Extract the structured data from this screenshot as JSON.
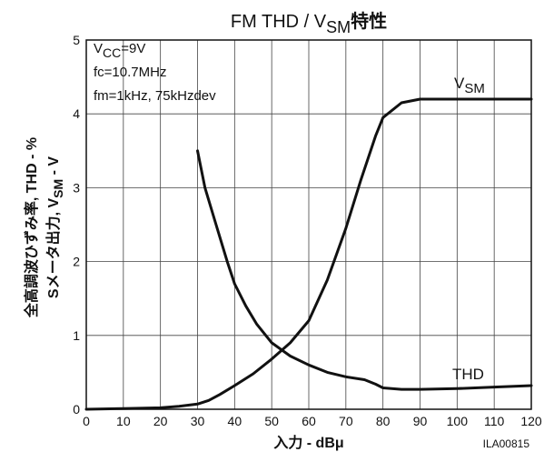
{
  "chart_data": {
    "type": "line",
    "title": "FM THD / VSM特性",
    "title_main": "FM THD / V",
    "title_sub": "SM",
    "title_suffix": "特性",
    "xlabel": "入力 - dBμ",
    "ylabel_line1": "全高調波ひずみ率, THD - %",
    "ylabel_line2_a": "Sメータ出力, V",
    "ylabel_line2_sub": "SM",
    "ylabel_line2_b": " - V",
    "xlim": [
      0,
      120
    ],
    "ylim": [
      0,
      5
    ],
    "x_ticks": [
      0,
      10,
      20,
      30,
      40,
      50,
      60,
      70,
      80,
      90,
      100,
      110,
      120
    ],
    "y_ticks": [
      0,
      1,
      2,
      3,
      4,
      5
    ],
    "grid": true,
    "conditions": {
      "vcc_a": "V",
      "vcc_sub": "CC",
      "vcc_b": "=9V",
      "fc": "fc=10.7MHz",
      "fm": "fm=1kHz, 75kHzdev"
    },
    "series": [
      {
        "name": "VSM",
        "label_main": "V",
        "label_sub": "SM",
        "x": [
          0,
          10,
          20,
          25,
          30,
          33,
          36,
          40,
          45,
          50,
          55,
          60,
          65,
          70,
          74,
          78,
          80,
          85,
          90,
          100,
          110,
          120
        ],
        "y": [
          0.0,
          0.01,
          0.02,
          0.04,
          0.07,
          0.12,
          0.2,
          0.32,
          0.48,
          0.68,
          0.9,
          1.2,
          1.75,
          2.45,
          3.1,
          3.7,
          3.95,
          4.15,
          4.2,
          4.2,
          4.2,
          4.2
        ]
      },
      {
        "name": "THD",
        "label_main": "THD",
        "label_sub": "",
        "x": [
          30,
          32,
          35,
          38,
          40,
          43,
          46,
          50,
          55,
          60,
          65,
          70,
          75,
          78,
          80,
          85,
          90,
          100,
          110,
          120
        ],
        "y": [
          3.5,
          3.0,
          2.5,
          2.0,
          1.7,
          1.4,
          1.15,
          0.9,
          0.72,
          0.6,
          0.5,
          0.44,
          0.4,
          0.34,
          0.29,
          0.27,
          0.27,
          0.28,
          0.3,
          0.32
        ]
      }
    ]
  },
  "figure_id": "ILA00815"
}
